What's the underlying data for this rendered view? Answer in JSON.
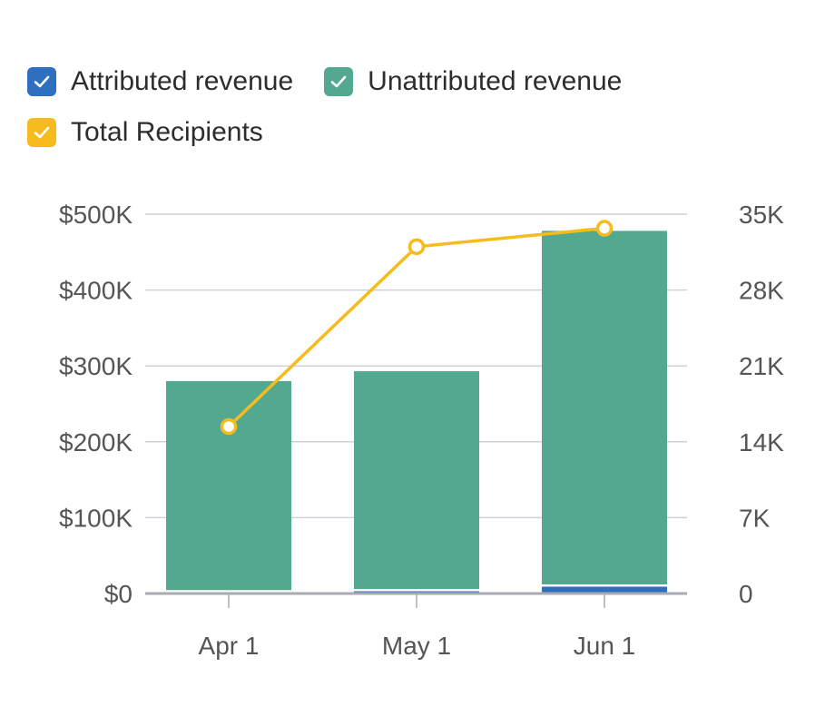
{
  "legend": {
    "items": [
      {
        "label": "Attributed revenue",
        "color": "#2f6fc0",
        "checked": true,
        "icon": "checkmark-icon"
      },
      {
        "label": "Unattributed revenue",
        "color": "#52a98f",
        "checked": true,
        "icon": "checkmark-icon"
      },
      {
        "label": "Total Recipients",
        "color": "#f6bb1c",
        "checked": true,
        "icon": "checkmark-icon"
      }
    ]
  },
  "chart_data": {
    "type": "bar",
    "stacked": true,
    "categories": [
      "Apr 1",
      "May 1",
      "Jun 1"
    ],
    "series": [
      {
        "name": "Attributed revenue",
        "type": "bar",
        "axis": "left",
        "color": "#2f6fc0",
        "values": [
          1500,
          3000,
          9000
        ]
      },
      {
        "name": "Unattributed revenue",
        "type": "bar",
        "axis": "left",
        "color": "#52a98f",
        "values": [
          278500,
          290000,
          469000
        ]
      },
      {
        "name": "Total Recipients",
        "type": "line",
        "axis": "right",
        "color": "#f6bb1c",
        "values": [
          15400,
          32000,
          33700
        ]
      }
    ],
    "y_left": {
      "range": [
        0,
        500000
      ],
      "ticks": [
        0,
        100000,
        200000,
        300000,
        400000,
        500000
      ],
      "tick_labels": [
        "$0",
        "$100K",
        "$200K",
        "$300K",
        "$400K",
        "$500K"
      ]
    },
    "y_right": {
      "range": [
        0,
        35000
      ],
      "ticks": [
        0,
        7000,
        14000,
        21000,
        28000,
        35000
      ],
      "tick_labels": [
        "0",
        "7K",
        "14K",
        "21K",
        "28K",
        "35K"
      ]
    },
    "grid": true,
    "legend_position": "top-left",
    "title": "",
    "xlabel": "",
    "ylabel": ""
  }
}
